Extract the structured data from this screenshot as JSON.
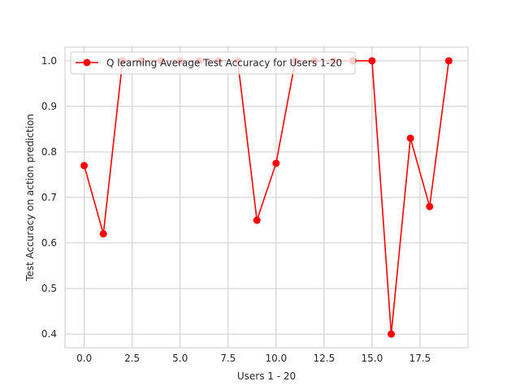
{
  "chart_data": {
    "type": "line",
    "xlabel": "Users 1 - 20",
    "ylabel": "Test Accuracy on action prediction",
    "xlim": [
      -1.0,
      20.0
    ],
    "ylim": [
      0.37,
      1.03
    ],
    "xticks": [
      0.0,
      2.5,
      5.0,
      7.5,
      10.0,
      12.5,
      15.0,
      17.5
    ],
    "xtick_labels": [
      "0.0",
      "2.5",
      "5.0",
      "7.5",
      "10.0",
      "12.5",
      "15.0",
      "17.5"
    ],
    "yticks": [
      0.4,
      0.5,
      0.6,
      0.7,
      0.8,
      0.9,
      1.0
    ],
    "ytick_labels": [
      "0.4",
      "0.5",
      "0.6",
      "0.7",
      "0.8",
      "0.9",
      "1.0"
    ],
    "grid": true,
    "legend_position": "upper-left",
    "series": [
      {
        "name": "Q learning Average Test Accuracy for Users 1-20",
        "color": "#ff0000",
        "marker": "circle",
        "x": [
          0,
          1,
          2,
          3,
          4,
          5,
          6,
          7,
          8,
          9,
          10,
          11,
          12,
          13,
          14,
          15,
          16,
          17,
          18,
          19
        ],
        "y": [
          0.77,
          0.62,
          1.0,
          1.0,
          1.0,
          1.0,
          1.0,
          1.0,
          1.0,
          0.65,
          0.775,
          1.0,
          1.0,
          1.0,
          1.0,
          1.0,
          0.4,
          0.83,
          0.68,
          1.0
        ]
      }
    ]
  }
}
